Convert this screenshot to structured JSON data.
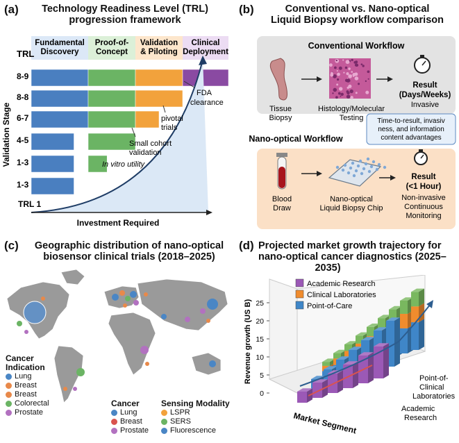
{
  "panel_a": {
    "letter": "(a)",
    "title_line1": "Technology Readiness Level (TRL)",
    "title_line2": "progression framework",
    "phases": [
      "Fundamental Discovery",
      "Proof-of-Concept",
      "Validation & Piloting",
      "Clinical Deployment"
    ],
    "phase_lines": [
      [
        "Fundamental",
        "Discovery"
      ],
      [
        "Proof-of-",
        "Concept"
      ],
      [
        "Validation",
        "& Piloting"
      ],
      [
        "Clinical",
        "Deployment"
      ]
    ],
    "phase_colors": [
      "#4a7fc0",
      "#6bb464",
      "#f2a23c",
      "#8a4aa2"
    ],
    "trl_header": "TRL",
    "rows": [
      {
        "label": "8-9",
        "segments": [
          1,
          1,
          1,
          1
        ]
      },
      {
        "label": "8-8",
        "segments": [
          1,
          1,
          1,
          0
        ]
      },
      {
        "label": "6-7",
        "segments": [
          1,
          1,
          0.5,
          0
        ]
      },
      {
        "label": "4-5",
        "segments": [
          0.75,
          1,
          0,
          0
        ]
      },
      {
        "label": "1-3",
        "segments": [
          0.75,
          0.4,
          0,
          0
        ]
      },
      {
        "label": "1-3",
        "segments": [
          0.75,
          0,
          0,
          0
        ]
      }
    ],
    "trl_bottom": "TRL 1",
    "yaxis_label": "Validation Stage",
    "xaxis_label": "Investment Required",
    "annotations": {
      "fda_line1": "FDA",
      "fda_line2": "clearance",
      "pivotal_line1": "pivotal",
      "pivotal_line2": "trials",
      "cohort_line1": "Small cohort",
      "cohort_line2": "validation",
      "invitro": "In vitro utility"
    }
  },
  "panel_b": {
    "letter": "(b)",
    "title_line1": "Conventional vs. Nano-optical",
    "title_line2": "Liquid Biopsy workflow comparison",
    "conventional_title": "Conventional Workflow",
    "conv_step1_line1": "Tissue",
    "conv_step1_line2": "Biopsy",
    "conv_step2_line1": "Histology/Molecular",
    "conv_step2_line2": "Testing",
    "conv_result_line1": "Result",
    "conv_result_line2": "(Days/Weeks)",
    "conv_result_line3": "Invasive",
    "callout_line1": "Time-to-result, invasiv",
    "callout_line2": "ness, and information",
    "callout_line3": "content advantages",
    "nano_title": "Nano-optical Workflow",
    "nano_step1_line1": "Blood",
    "nano_step1_line2": "Draw",
    "nano_step2_line1": "Nano-optical",
    "nano_step2_line2": "Liquid Biopsy Chip",
    "nano_result_line1": "Result",
    "nano_result_line2": "(<1 Hour)",
    "nano_result_line3": "Non-invasive",
    "nano_result_line4": "Continuous",
    "nano_result_line5": "Monitoring"
  },
  "panel_c": {
    "letter": "(c)",
    "title_line1": "Geographic distribution of nano-optical",
    "title_line2": "biosensor clinical trials (2018–2025)",
    "legend1_title_line1": "Cancer",
    "legend1_title_line2": "Indication",
    "legend1_items": [
      {
        "label": "Lung",
        "color": "#4a86c5"
      },
      {
        "label": "Breast",
        "color": "#e8894a"
      },
      {
        "label": "Breast",
        "color": "#e8894a"
      },
      {
        "label": "Colorectal",
        "color": "#6bb464"
      },
      {
        "label": "Prostate",
        "color": "#b271c0"
      }
    ],
    "legend2_title": "Cancer",
    "legend2_items": [
      {
        "label": "Lung",
        "color": "#4a86c5"
      },
      {
        "label": "Breast",
        "color": "#d9534f"
      },
      {
        "label": "Prostate",
        "color": "#b271c0"
      }
    ],
    "legend3_title": "Sensing Modality",
    "legend3_items": [
      {
        "label": "LSPR",
        "color": "#f2a23c"
      },
      {
        "label": "SERS",
        "color": "#6bb464"
      },
      {
        "label": "Fluorescence",
        "color": "#4a86c5"
      }
    ]
  },
  "panel_d": {
    "letter": "(d)",
    "title_line1": "Projected market growth trajectory for",
    "title_line2": "nano-optical cancer diagnostics (2025–",
    "title_line3": "2035)",
    "legend": [
      {
        "label": "Academic Research",
        "color": "#9b59b6"
      },
      {
        "label": "Clinical Laboratories",
        "color": "#f08c2e"
      },
      {
        "label": "Point-of-Care",
        "color": "#3f86c8"
      }
    ],
    "ylabel": "Revenue growth (US B)",
    "yticks": [
      "25",
      "20",
      "15",
      "10",
      "5",
      "0"
    ],
    "xlabel": "Market Segment",
    "depth_labels": [
      "Point-of-",
      "Clinical",
      "Laboratories",
      "Academic",
      "Research"
    ]
  },
  "colors": {
    "blue": "#4a7fc0",
    "green": "#6bb464",
    "orange": "#f2a23c",
    "purple": "#8a4aa2",
    "panel_grey": "#e6e6e6",
    "panel_peach": "#fbe3cc"
  }
}
